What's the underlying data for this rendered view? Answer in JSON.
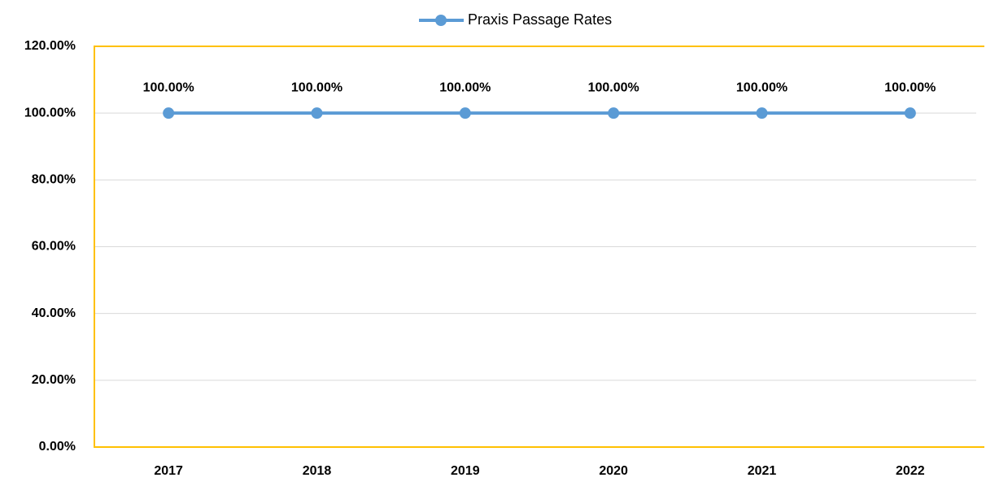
{
  "chart_data": {
    "type": "line",
    "categories": [
      "2017",
      "2018",
      "2019",
      "2020",
      "2021",
      "2022"
    ],
    "series": [
      {
        "name": "Praxis Passage Rates",
        "color": "#5b9bd5",
        "values": [
          100,
          100,
          100,
          100,
          100,
          100
        ],
        "value_labels": [
          "100.00%",
          "100.00%",
          "100.00%",
          "100.00%",
          "100.00%",
          "100.00%"
        ]
      }
    ],
    "ylim": [
      0,
      120
    ],
    "yticks": [
      {
        "value": 0,
        "label": "0.00%"
      },
      {
        "value": 20,
        "label": "20.00%"
      },
      {
        "value": 40,
        "label": "40.00%"
      },
      {
        "value": 60,
        "label": "60.00%"
      },
      {
        "value": 80,
        "label": "80.00%"
      },
      {
        "value": 100,
        "label": "100.00%"
      },
      {
        "value": 120,
        "label": "120.00%"
      }
    ],
    "grid": true,
    "legend": "top",
    "border_color": "#ffc000"
  }
}
